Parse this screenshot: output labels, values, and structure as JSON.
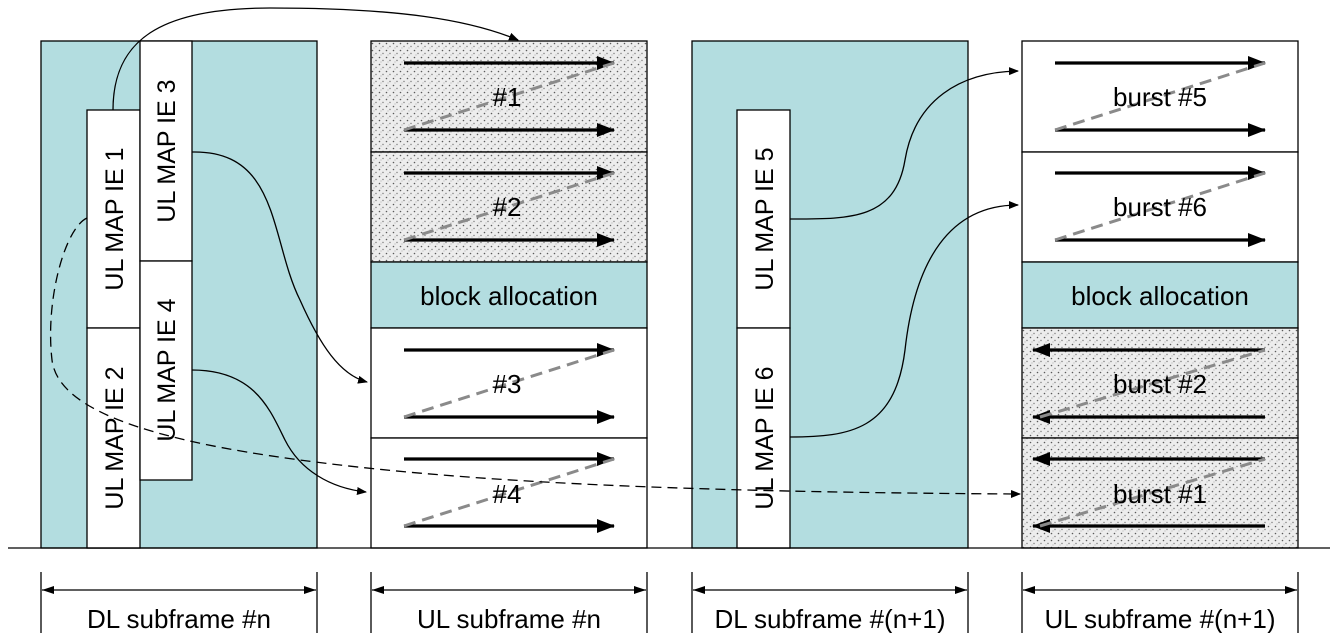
{
  "dl_subframe_n": {
    "ie_1": "UL MAP IE 1",
    "ie_2": "UL MAP IE 2",
    "ie_3": "UL MAP IE 3",
    "ie_4": "UL MAP IE 4",
    "caption": "DL subframe #n"
  },
  "ul_subframe_n": {
    "burst_1": "#1",
    "burst_2": "#2",
    "block": "block allocation",
    "burst_3": "#3",
    "burst_4": "#4",
    "caption": "UL subframe #n"
  },
  "dl_subframe_n1": {
    "ie_5": "UL MAP IE 5",
    "ie_6": "UL MAP IE 6",
    "caption": "DL subframe #(n+1)"
  },
  "ul_subframe_n1": {
    "burst_5": "burst #5",
    "burst_6": "burst #6",
    "block": "block allocation",
    "burst_2": "burst #2",
    "burst_1": "burst #1",
    "caption": "UL subframe #(n+1)"
  },
  "colors": {
    "teal_fill": "#b3dde0",
    "dashed_arrow": "#8a8a8a"
  }
}
